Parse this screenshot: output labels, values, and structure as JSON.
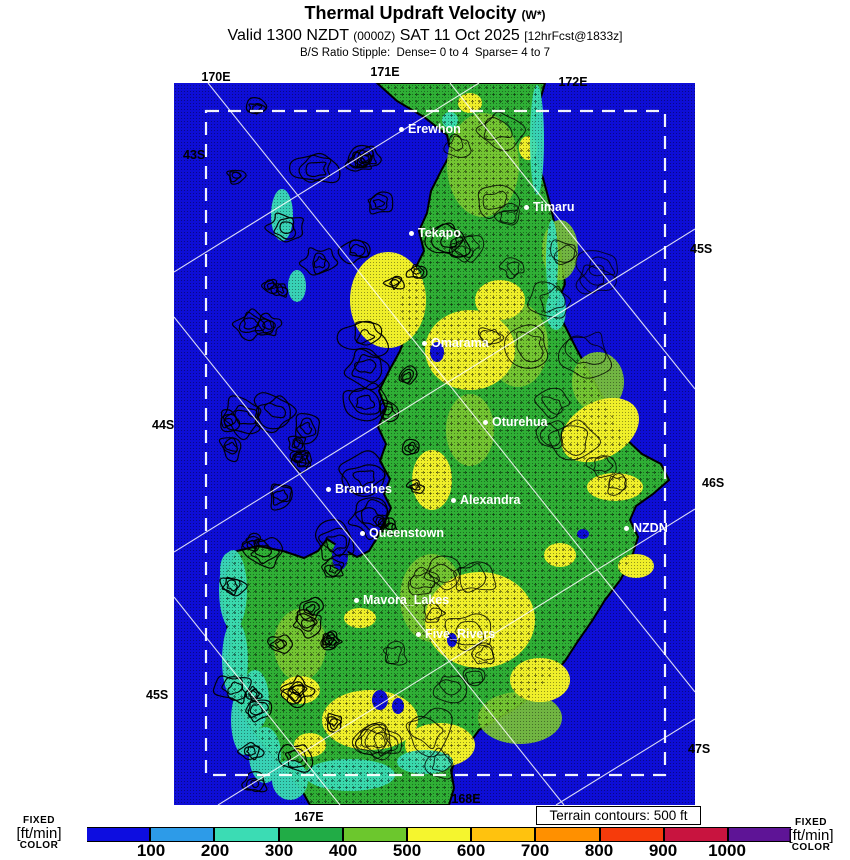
{
  "header": {
    "title": "Thermal Updraft Velocity",
    "title_note": "(W*)",
    "valid_prefix": "Valid 1300 NZDT",
    "valid_zulu": "(0000Z)",
    "valid_date": "SAT 11 Oct 2025",
    "valid_fcst": "[12hrFcst@1833z]",
    "stipple_note": "B/S Ratio Stipple:  Dense= 0 to 4  Sparse= 4 to 7"
  },
  "map": {
    "coord_labels": [
      "170E",
      "171E",
      "172E",
      "43S",
      "44S",
      "45S",
      "45S",
      "46S",
      "47S",
      "167E",
      "168E"
    ],
    "places": [
      {
        "name": "Erewhon"
      },
      {
        "name": "Timaru"
      },
      {
        "name": "Tekapo"
      },
      {
        "name": "Omarama"
      },
      {
        "name": "Oturehua"
      },
      {
        "name": "Branches"
      },
      {
        "name": "Alexandra"
      },
      {
        "name": "Queenstown"
      },
      {
        "name": "NZDN"
      },
      {
        "name": "Mavora_Lakes"
      },
      {
        "name": "Five_Rivers"
      }
    ],
    "colors": {
      "ocean": "#0E0ED6",
      "land_green": "#2FAF35",
      "light_green": "#7CC832",
      "yellow": "#EFEF2A",
      "cyan": "#3BDCB4",
      "contour": "#000000",
      "graticule": "#FFFFFF"
    }
  },
  "terrain_note": "Terrain contours: 500 ft",
  "colorbar": {
    "units_label": {
      "top": "FIXED",
      "mid": "[ft/min]",
      "bottom": "COLOR"
    },
    "ticks": [
      "100",
      "200",
      "300",
      "400",
      "500",
      "600",
      "700",
      "800",
      "900",
      "1000"
    ],
    "colors": [
      "#0D0DE0",
      "#2D9BE8",
      "#3BDCB4",
      "#21AC46",
      "#6CC72D",
      "#F5F52E",
      "#FFC20E",
      "#FF9000",
      "#F63B0B",
      "#C8143F",
      "#5E1496"
    ]
  }
}
